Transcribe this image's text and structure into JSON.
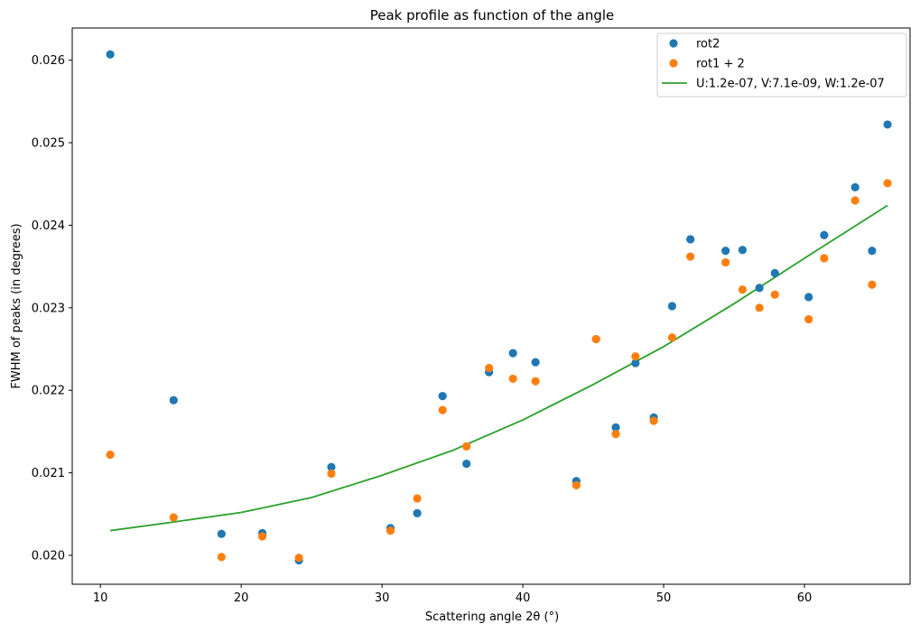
{
  "chart_data": {
    "type": "scatter",
    "title": "Peak profile as function of the angle",
    "xlabel": "Scattering angle 2θ (°)",
    "ylabel": "FWHM of peaks (in degrees)",
    "xlim": [
      8,
      67.5
    ],
    "ylim": [
      0.01965,
      0.02639
    ],
    "xticks": [
      10,
      20,
      30,
      40,
      50,
      60
    ],
    "yticks": [
      0.02,
      0.021,
      0.022,
      0.023,
      0.024,
      0.025,
      0.026
    ],
    "xtick_labels": [
      "10",
      "20",
      "30",
      "40",
      "50",
      "60"
    ],
    "ytick_labels": [
      "0.020",
      "0.021",
      "0.022",
      "0.023",
      "0.024",
      "0.025",
      "0.026"
    ],
    "grid": false,
    "legend_position": "top-right",
    "x": [
      10.7,
      15.2,
      18.6,
      21.5,
      24.1,
      26.4,
      30.6,
      32.5,
      34.3,
      36.0,
      37.6,
      39.3,
      40.9,
      43.8,
      45.2,
      46.6,
      48.0,
      49.3,
      50.6,
      51.9,
      54.4,
      55.6,
      56.8,
      57.9,
      60.3,
      61.4,
      63.6,
      64.8,
      65.9
    ],
    "series": [
      {
        "name": "rot2",
        "kind": "scatter",
        "color": "#1f77b4",
        "y": [
          0.02607,
          0.02188,
          0.02026,
          0.02027,
          0.01994,
          0.02107,
          0.02033,
          0.02051,
          0.02193,
          0.02111,
          0.02222,
          0.02245,
          0.02234,
          0.0209,
          0.02262,
          0.02155,
          0.02233,
          0.02167,
          0.02302,
          0.02383,
          0.02369,
          0.0237,
          0.02324,
          0.02342,
          0.02313,
          0.02388,
          0.02446,
          0.02369,
          0.02522
        ]
      },
      {
        "name": "rot1 + 2",
        "kind": "scatter",
        "color": "#ff7f0e",
        "y": [
          0.02122,
          0.02046,
          0.01998,
          0.02023,
          0.01997,
          0.02099,
          0.0203,
          0.02069,
          0.02176,
          0.02132,
          0.02227,
          0.02214,
          0.02211,
          0.02085,
          0.02262,
          0.02147,
          0.02241,
          0.02163,
          0.02264,
          0.02362,
          0.02355,
          0.02322,
          0.023,
          0.02316,
          0.02286,
          0.0236,
          0.0243,
          0.02328,
          0.02451
        ]
      },
      {
        "name": "U:1.2e-07, V:7.1e-09, W:1.2e-07",
        "kind": "line",
        "color": "#2ca02c",
        "x": [
          10.7,
          15,
          20,
          25,
          30,
          35,
          40,
          45,
          50,
          55,
          60,
          65.9
        ],
        "y": [
          0.0203,
          0.0204,
          0.02052,
          0.0207,
          0.02097,
          0.02127,
          0.02164,
          0.02207,
          0.02253,
          0.02305,
          0.0236,
          0.02424
        ]
      }
    ]
  }
}
